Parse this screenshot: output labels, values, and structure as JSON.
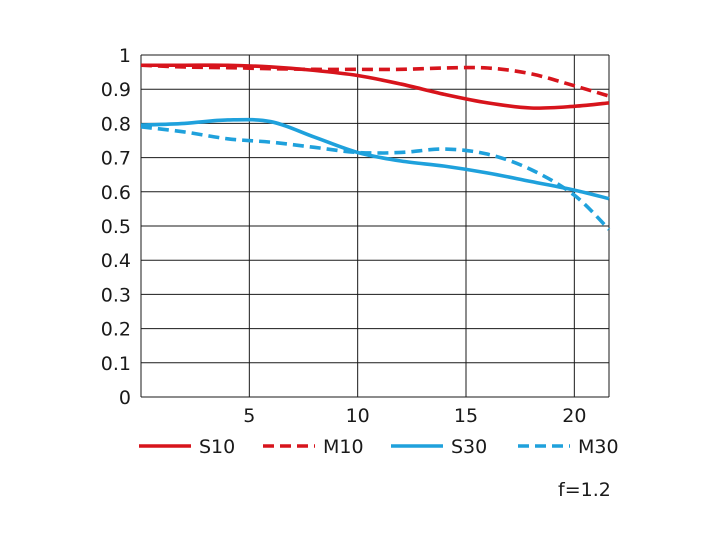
{
  "chart_data": {
    "type": "line",
    "title": "",
    "xlabel": "",
    "ylabel": "",
    "xlim": [
      0,
      21.6
    ],
    "ylim": [
      0,
      1
    ],
    "grid": true,
    "legend_position": "bottom",
    "x_ticks": [
      5,
      10,
      15,
      20
    ],
    "y_ticks": [
      0,
      0.1,
      0.2,
      0.3,
      0.4,
      0.5,
      0.6,
      0.7,
      0.8,
      0.9,
      1
    ],
    "x_tick_labels": [
      "5",
      "10",
      "15",
      "20"
    ],
    "y_tick_labels": [
      "0",
      "0.1",
      "0.2",
      "0.3",
      "0.4",
      "0.5",
      "0.6",
      "0.7",
      "0.8",
      "0.9",
      "1"
    ],
    "annotation": "f=1.2",
    "colors": {
      "red": "#d7141c",
      "blue": "#1fa1dc"
    },
    "series": [
      {
        "name": "S10",
        "color": "#d7141c",
        "dash": false,
        "x": [
          0,
          2,
          4,
          6,
          8,
          10,
          12,
          14,
          16,
          18,
          20,
          21.6
        ],
        "y": [
          0.97,
          0.97,
          0.97,
          0.965,
          0.955,
          0.94,
          0.915,
          0.885,
          0.86,
          0.845,
          0.85,
          0.86
        ]
      },
      {
        "name": "M10",
        "color": "#d7141c",
        "dash": true,
        "x": [
          0,
          2,
          4,
          6,
          8,
          10,
          12,
          14,
          16,
          18,
          20,
          21.6
        ],
        "y": [
          0.97,
          0.965,
          0.963,
          0.96,
          0.958,
          0.958,
          0.958,
          0.962,
          0.962,
          0.945,
          0.91,
          0.88
        ]
      },
      {
        "name": "S30",
        "color": "#1fa1dc",
        "dash": false,
        "x": [
          0,
          2,
          4,
          6,
          8,
          10,
          12,
          14,
          16,
          18,
          20,
          21.6
        ],
        "y": [
          0.795,
          0.8,
          0.81,
          0.805,
          0.76,
          0.715,
          0.69,
          0.675,
          0.655,
          0.63,
          0.605,
          0.58
        ]
      },
      {
        "name": "M30",
        "color": "#1fa1dc",
        "dash": true,
        "x": [
          0,
          2,
          4,
          6,
          8,
          10,
          12,
          14,
          16,
          18,
          20,
          21.6
        ],
        "y": [
          0.79,
          0.775,
          0.755,
          0.745,
          0.73,
          0.715,
          0.715,
          0.725,
          0.71,
          0.665,
          0.59,
          0.49
        ]
      }
    ]
  }
}
